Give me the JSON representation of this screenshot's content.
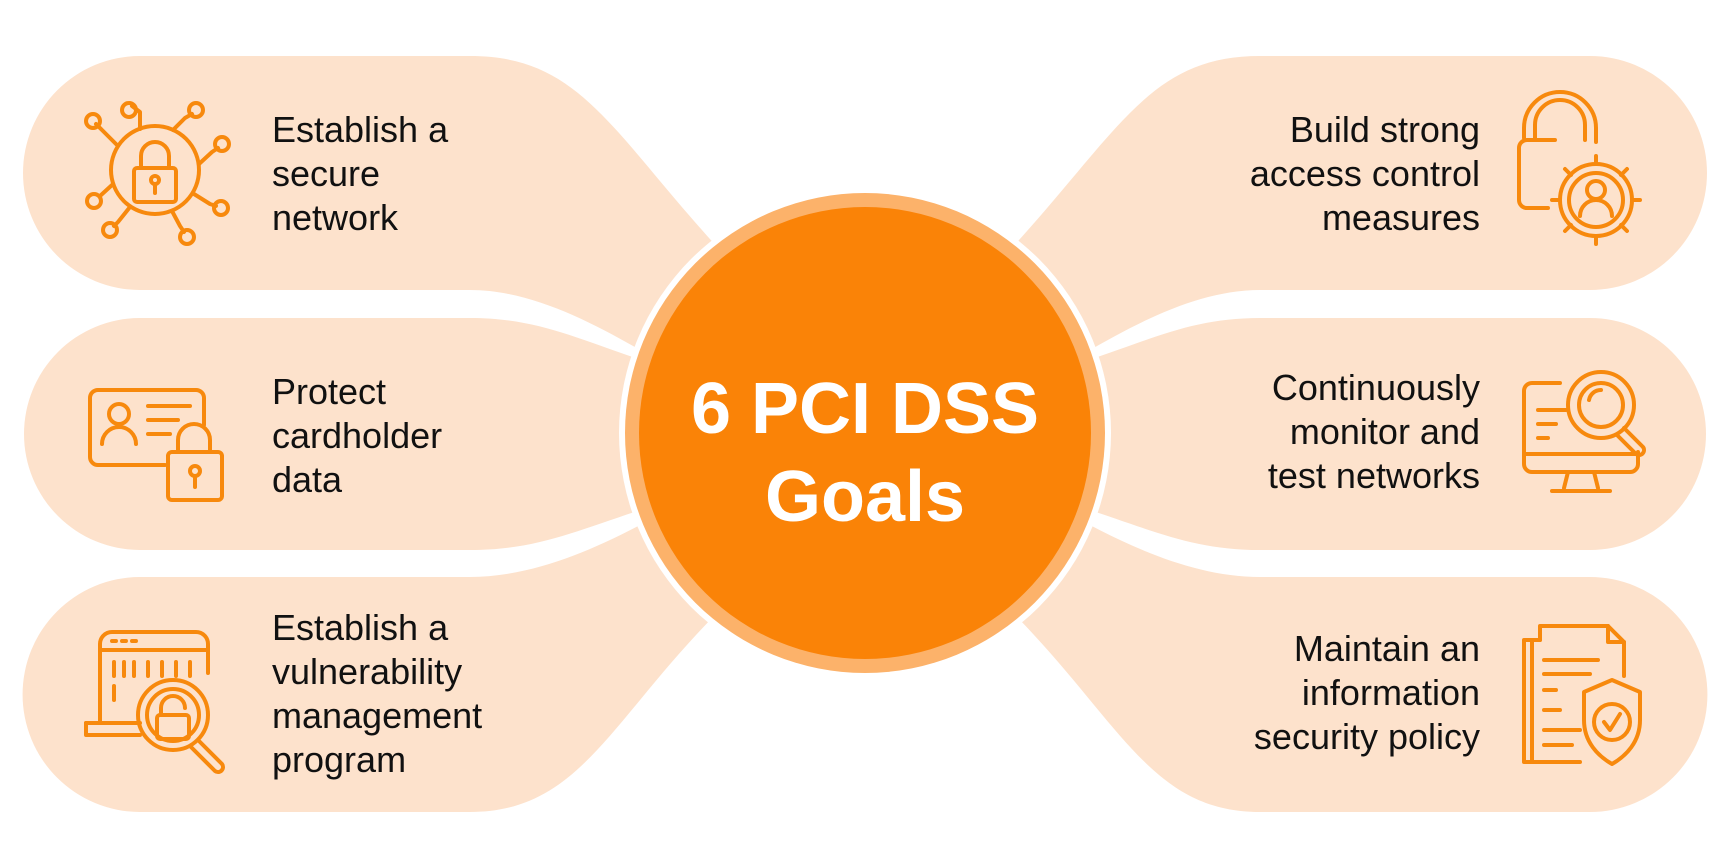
{
  "center": {
    "title": "6 PCI DSS\nGoals"
  },
  "goals": [
    {
      "label": "Establish a\nsecure\nnetwork",
      "icon": "secure-network-icon"
    },
    {
      "label": "Protect\ncardholder\ndata",
      "icon": "cardholder-data-icon"
    },
    {
      "label": "Establish a\nvulnerability\nmanagement\nprogram",
      "icon": "vulnerability-management-icon"
    },
    {
      "label": "Build strong\naccess control\nmeasures",
      "icon": "access-control-icon"
    },
    {
      "label": "Continuously\nmonitor and\ntest networks",
      "icon": "network-monitoring-icon"
    },
    {
      "label": "Maintain an\ninformation\nsecurity policy",
      "icon": "security-policy-icon"
    }
  ],
  "colors": {
    "accent": "#fa8307",
    "petal": "#fde2cc",
    "ring": "#fcb26a",
    "icon": "#f7890d",
    "text": "#111111"
  }
}
